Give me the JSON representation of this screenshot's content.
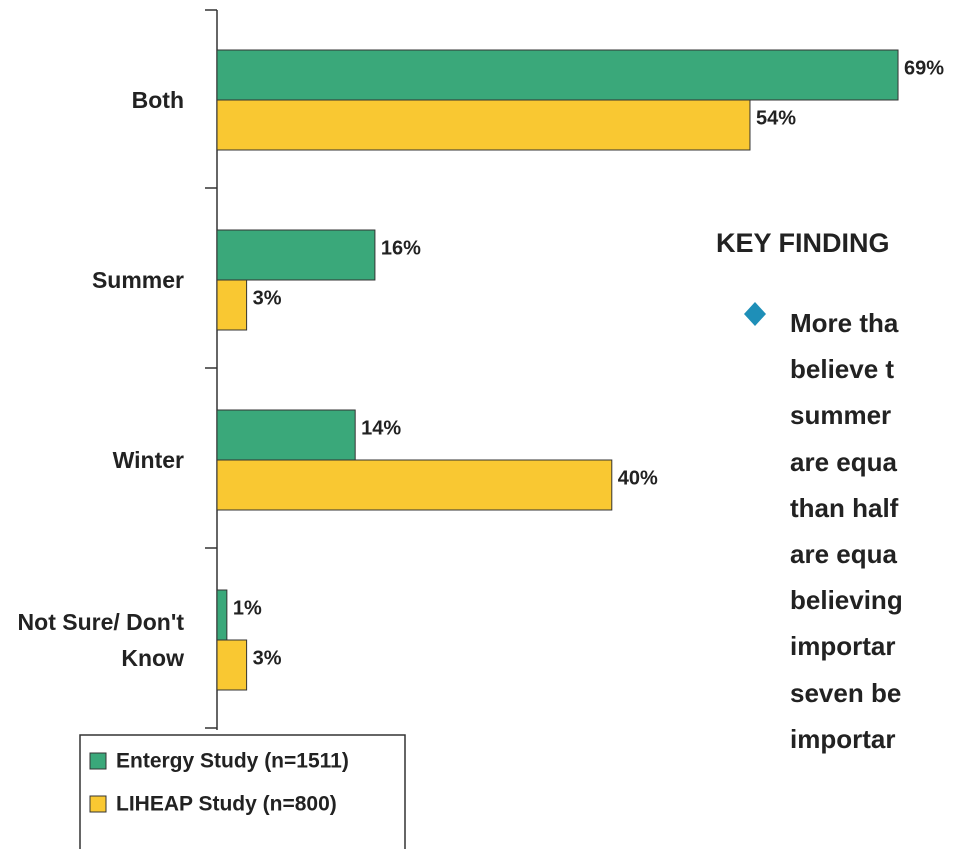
{
  "chart_data": {
    "type": "bar",
    "orientation": "horizontal",
    "categories": [
      "Both",
      "Summer",
      "Winter",
      "Not Sure/ Don't Know"
    ],
    "series": [
      {
        "name": "Entergy Study (n=1511)",
        "color": "#3aa87a",
        "values": [
          69,
          16,
          14,
          1
        ],
        "value_labels": [
          "69%",
          "16%",
          "14%",
          "1%"
        ]
      },
      {
        "name": "LIHEAP Study (n=800)",
        "color": "#f9c832",
        "values": [
          54,
          3,
          40,
          3
        ],
        "value_labels": [
          "54%",
          "3%",
          "40%",
          "3%"
        ]
      }
    ]
  },
  "key_finding": {
    "heading": "KEY FINDING",
    "lines": [
      "More tha",
      "believe t",
      "summer",
      "are equa",
      "than half",
      "are equa",
      "believing",
      "importar",
      "seven be",
      "importar"
    ]
  }
}
